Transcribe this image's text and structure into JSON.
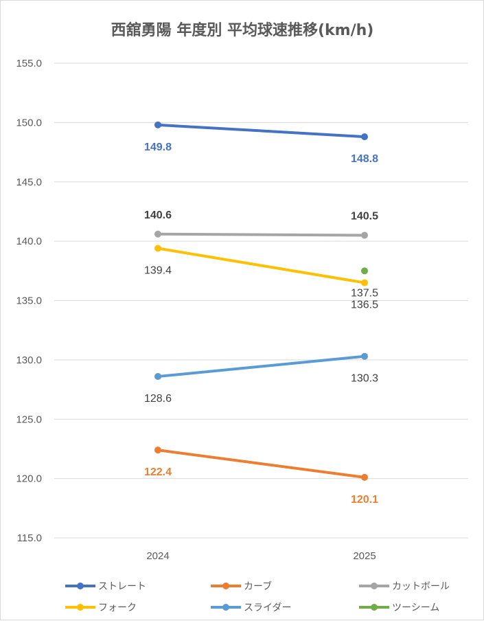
{
  "chart_data": {
    "type": "line",
    "title": "西舘勇陽 年度別 平均球速推移(km/h)",
    "categories": [
      "2024",
      "2025"
    ],
    "ylim": [
      115,
      155
    ],
    "yticks": [
      "115.0",
      "120.0",
      "125.0",
      "130.0",
      "135.0",
      "140.0",
      "145.0",
      "150.0",
      "155.0"
    ],
    "grid": true,
    "legend_position": "bottom",
    "series": [
      {
        "name": "ストレート",
        "color": "#4472c4",
        "values": [
          149.8,
          148.8
        ],
        "labels": [
          "149.8",
          "148.8"
        ],
        "label_pos": "below",
        "label_bold": true
      },
      {
        "name": "カーブ",
        "color": "#ed7d31",
        "values": [
          122.4,
          120.1
        ],
        "labels": [
          "122.4",
          "120.1"
        ],
        "label_pos": "below",
        "label_bold": true
      },
      {
        "name": "カットボール",
        "color": "#a5a5a5",
        "values": [
          140.6,
          140.5
        ],
        "labels": [
          "140.6",
          "140.5"
        ],
        "label_pos": "above",
        "label_bold": true
      },
      {
        "name": "フォーク",
        "color": "#ffc000",
        "values": [
          139.4,
          136.5
        ],
        "labels": [
          "139.4",
          "136.5"
        ],
        "label_pos": "below",
        "label_bold": false
      },
      {
        "name": "スライダー",
        "color": "#5b9bd5",
        "values": [
          128.6,
          130.3
        ],
        "labels": [
          "128.6",
          "130.3"
        ],
        "label_pos": "below",
        "label_bold": false
      },
      {
        "name": "ツーシーム",
        "color": "#70ad47",
        "values": [
          null,
          137.5
        ],
        "labels": [
          null,
          "137.5"
        ],
        "label_pos": "below",
        "label_bold": false
      }
    ]
  }
}
